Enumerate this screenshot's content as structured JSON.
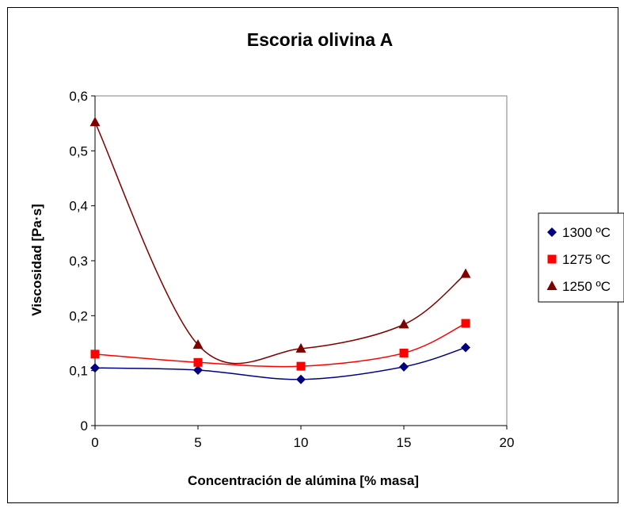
{
  "chart_data": {
    "type": "scatter",
    "title": "Escoria olivina A",
    "xlabel": "Concentración de alúmina [% masa]",
    "ylabel": "Viscosidad [Pa·s]",
    "xlim": [
      0,
      20
    ],
    "ylim": [
      0,
      0.6
    ],
    "xticks": [
      "0",
      "5",
      "10",
      "15",
      "20"
    ],
    "yticks": [
      "0",
      "0,1",
      "0,2",
      "0,3",
      "0,4",
      "0,5",
      "0,6"
    ],
    "grid": false,
    "legend_position": "right",
    "trendlines": "smooth",
    "series": [
      {
        "name": "1300 ºC",
        "color": "#000080",
        "marker": "diamond",
        "line_color": "#000080",
        "x": [
          0,
          5,
          10,
          15,
          18
        ],
        "y": [
          0.105,
          0.101,
          0.084,
          0.107,
          0.142
        ]
      },
      {
        "name": "1275 ºC",
        "color": "#ff0000",
        "marker": "square",
        "line_color": "#ff0000",
        "x": [
          0,
          5,
          10,
          15,
          18
        ],
        "y": [
          0.13,
          0.115,
          0.108,
          0.132,
          0.186
        ]
      },
      {
        "name": "1250 ºC",
        "color": "#800000",
        "marker": "triangle",
        "line_color": "#800000",
        "x": [
          0,
          5,
          10,
          15,
          18
        ],
        "y": [
          0.552,
          0.147,
          0.14,
          0.184,
          0.276
        ]
      }
    ]
  }
}
